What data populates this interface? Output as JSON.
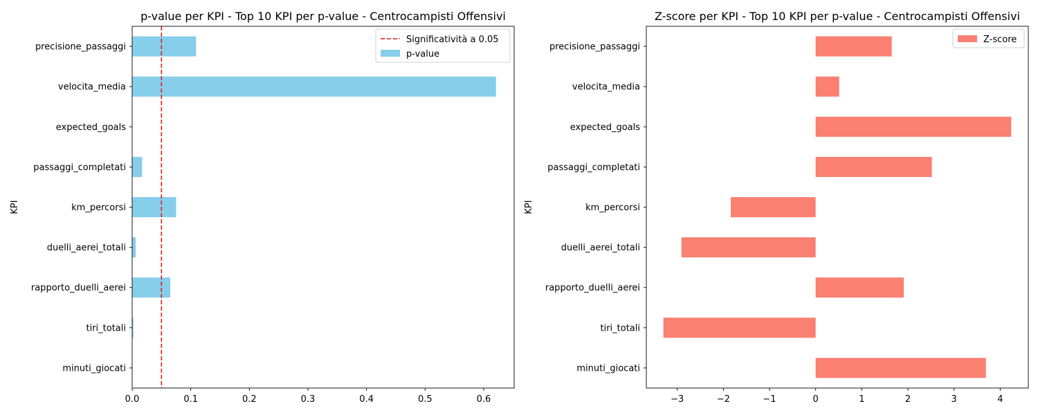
{
  "chart_data": [
    {
      "type": "bar",
      "orientation": "horizontal",
      "title": "p-value per KPI - Top 10 KPI per p-value - Centrocampisti Offensivi",
      "xlabel": "",
      "ylabel": "KPI",
      "categories": [
        "precisione_passaggi",
        "velocita_media",
        "expected_goals",
        "passaggi_completati",
        "km_percorsi",
        "duelli_aerei_totali",
        "rapporto_duelli_aerei",
        "tiri_totali",
        "minuti_giocati"
      ],
      "series": [
        {
          "name": "p-value",
          "color": "#87ceeb",
          "values": [
            0.109,
            0.621,
            0.0,
            0.017,
            0.075,
            0.006,
            0.065,
            0.002,
            0.0
          ]
        }
      ],
      "reference_line": {
        "name": "Significatività a 0.05",
        "value": 0.05,
        "color": "#e41a1c",
        "style": "dashed"
      },
      "xlim": [
        0,
        0.652
      ],
      "xticks": [
        0.0,
        0.1,
        0.2,
        0.3,
        0.4,
        0.5,
        0.6
      ],
      "xtick_labels": [
        "0.0",
        "0.1",
        "0.2",
        "0.3",
        "0.4",
        "0.5",
        "0.6"
      ],
      "grid": false,
      "legend": "top-right"
    },
    {
      "type": "bar",
      "orientation": "horizontal",
      "title": "Z-score per KPI - Top 10 KPI per p-value - Centrocampisti Offensivi",
      "xlabel": "",
      "ylabel": "KPI",
      "categories": [
        "precisione_passaggi",
        "velocita_media",
        "expected_goals",
        "passaggi_completati",
        "km_percorsi",
        "duelli_aerei_totali",
        "rapporto_duelli_aerei",
        "tiri_totali",
        "minuti_giocati"
      ],
      "series": [
        {
          "name": "Z-score",
          "color": "#fa8072",
          "values": [
            1.65,
            0.51,
            4.24,
            2.52,
            -1.84,
            -2.91,
            1.91,
            -3.3,
            3.69
          ]
        }
      ],
      "xlim": [
        -3.67,
        4.61
      ],
      "xticks": [
        -3,
        -2,
        -1,
        0,
        1,
        2,
        3,
        4
      ],
      "xtick_labels": [
        "−3",
        "−2",
        "−1",
        "0",
        "1",
        "2",
        "3",
        "4"
      ],
      "grid": false,
      "legend": "top-right"
    }
  ]
}
